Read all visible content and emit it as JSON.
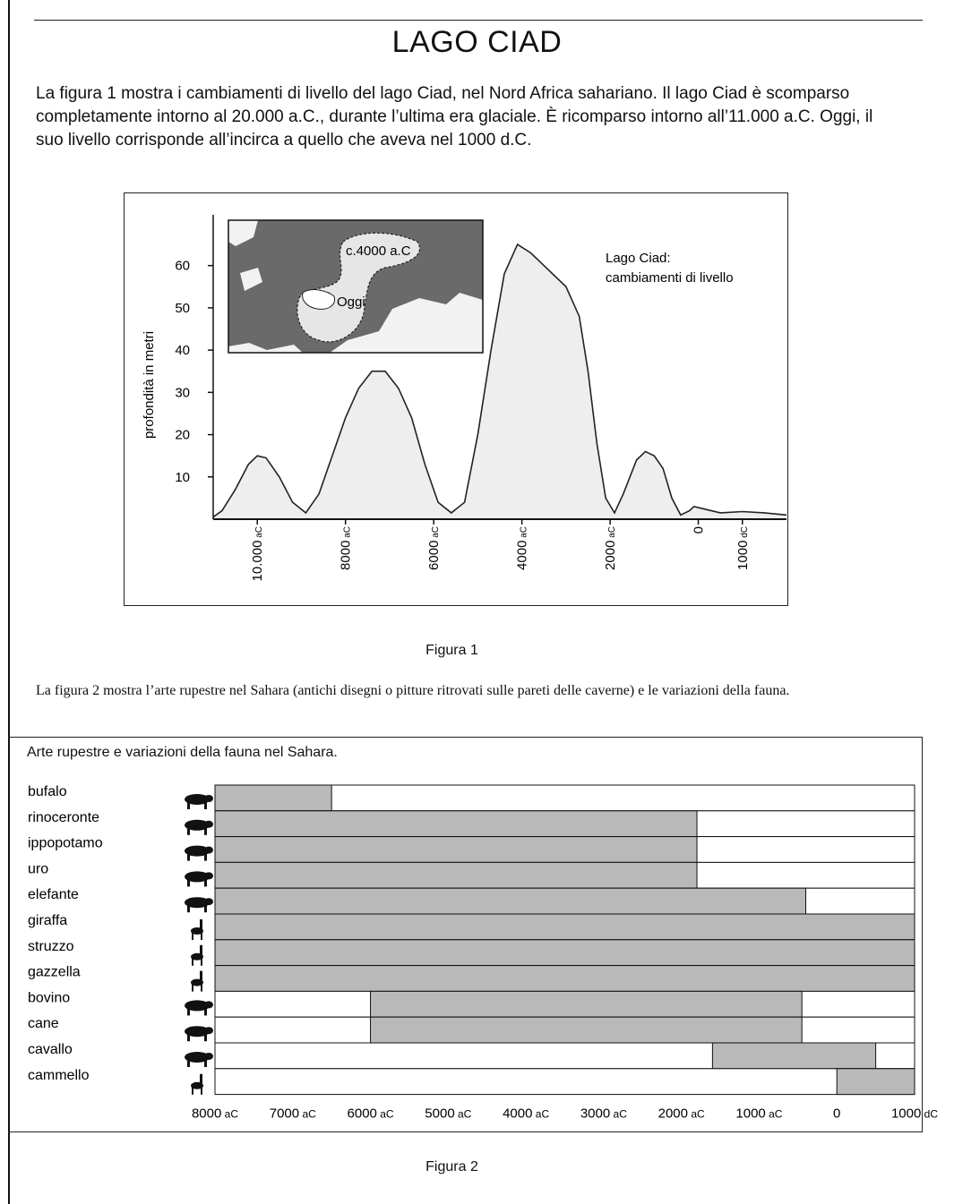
{
  "page": {
    "title": "LAGO CIAD",
    "intro": "La figura 1 mostra i cambiamenti di livello del lago Ciad, nel Nord Africa sahariano. Il lago Ciad è scomparso completamente intorno al 20.000 a.C., durante l’ultima era glaciale. È ricomparso intorno all’11.000 a.C. Oggi, il suo livello corrisponde all’incirca a quello che aveva nel 1000 d.C.",
    "figure1_caption": "Figura 1",
    "intro2": "La figura 2 mostra l’arte rupestre nel Sahara (antichi disegni o pitture ritrovati sulle pareti delle caverne) e le variazioni della fauna.",
    "figure2_caption": "Figura 2"
  },
  "chart_data": [
    {
      "type": "area",
      "title": "Lago Ciad: cambiamenti di livello",
      "ylabel": "profondità in metri",
      "ylim": [
        0,
        72
      ],
      "yticks": [
        10,
        20,
        30,
        40,
        50,
        60
      ],
      "xticks": [
        {
          "value": -10000,
          "label": "10.000 aC"
        },
        {
          "value": -8000,
          "label": "8000 aC"
        },
        {
          "value": -6000,
          "label": "6000 aC"
        },
        {
          "value": -4000,
          "label": "4000 aC"
        },
        {
          "value": -2000,
          "label": "2000 aC"
        },
        {
          "value": 0,
          "label": "0"
        },
        {
          "value": 1000,
          "label": "1000 dC"
        }
      ],
      "xlim": [
        -11000,
        2000
      ],
      "points": [
        [
          -11000,
          0.5
        ],
        [
          -10800,
          2
        ],
        [
          -10500,
          7
        ],
        [
          -10200,
          13
        ],
        [
          -10000,
          15
        ],
        [
          -9800,
          14.5
        ],
        [
          -9500,
          10
        ],
        [
          -9200,
          4
        ],
        [
          -8900,
          1.5
        ],
        [
          -8600,
          6
        ],
        [
          -8300,
          15
        ],
        [
          -8000,
          24
        ],
        [
          -7700,
          31
        ],
        [
          -7400,
          35
        ],
        [
          -7100,
          35
        ],
        [
          -6800,
          31
        ],
        [
          -6500,
          24
        ],
        [
          -6200,
          13
        ],
        [
          -5900,
          4
        ],
        [
          -5600,
          1.5
        ],
        [
          -5300,
          4
        ],
        [
          -5000,
          20
        ],
        [
          -4700,
          40
        ],
        [
          -4400,
          58
        ],
        [
          -4100,
          65
        ],
        [
          -3800,
          63
        ],
        [
          -3500,
          60
        ],
        [
          -3000,
          55
        ],
        [
          -2700,
          48
        ],
        [
          -2500,
          35
        ],
        [
          -2300,
          18
        ],
        [
          -2100,
          5
        ],
        [
          -1900,
          1.5
        ],
        [
          -1700,
          6
        ],
        [
          -1400,
          14
        ],
        [
          -1200,
          16
        ],
        [
          -1000,
          15
        ],
        [
          -800,
          12
        ],
        [
          -600,
          5
        ],
        [
          -400,
          1
        ],
        [
          -200,
          2
        ],
        [
          -100,
          3
        ],
        [
          100,
          2.5
        ],
        [
          500,
          1.5
        ],
        [
          1000,
          1.8
        ],
        [
          1500,
          1.5
        ],
        [
          2000,
          1
        ]
      ],
      "inset": {
        "labels": [
          "c.4000 a.C",
          "Oggi"
        ],
        "land_color": "#6a6a6a",
        "lake_color": "#e6e6e6",
        "ocean_color": "#f2f2f2"
      },
      "fill_color": "#eeeeee",
      "line_color": "#222222"
    },
    {
      "type": "bar",
      "title": "Arte rupestre e variazioni della fauna nel Sahara.",
      "orientation": "horizontal-ranges",
      "xlim": [
        -8000,
        1000
      ],
      "xticks": [
        {
          "value": -8000,
          "label": "8000 aC"
        },
        {
          "value": -7000,
          "label": "7000 aC"
        },
        {
          "value": -6000,
          "label": "6000 aC"
        },
        {
          "value": -5000,
          "label": "5000 aC"
        },
        {
          "value": -4000,
          "label": "4000 aC"
        },
        {
          "value": -3000,
          "label": "3000 aC"
        },
        {
          "value": -2000,
          "label": "2000 aC"
        },
        {
          "value": -1000,
          "label": "1000 aC"
        },
        {
          "value": 0,
          "label": "0"
        },
        {
          "value": 1000,
          "label": "1000 dC"
        }
      ],
      "series": [
        {
          "name": "bufalo",
          "icon": "buffalo-icon",
          "start": -8000,
          "end": -6500
        },
        {
          "name": "rinoceronte",
          "icon": "rhinoceros-icon",
          "start": -8000,
          "end": -1800
        },
        {
          "name": "ippopotamo",
          "icon": "hippopotamus-icon",
          "start": -8000,
          "end": -1800
        },
        {
          "name": "uro",
          "icon": "aurochs-icon",
          "start": -8000,
          "end": -1800
        },
        {
          "name": "elefante",
          "icon": "elephant-icon",
          "start": -8000,
          "end": -400
        },
        {
          "name": "giraffa",
          "icon": "giraffe-icon",
          "start": -8000,
          "end": 1000
        },
        {
          "name": "struzzo",
          "icon": "ostrich-icon",
          "start": -8000,
          "end": 1000
        },
        {
          "name": "gazzella",
          "icon": "gazelle-icon",
          "start": -8000,
          "end": 1000
        },
        {
          "name": "bovino",
          "icon": "cattle-icon",
          "start": -6000,
          "end": -450
        },
        {
          "name": "cane",
          "icon": "dog-icon",
          "start": -6000,
          "end": -450
        },
        {
          "name": "cavallo",
          "icon": "horse-icon",
          "start": -1600,
          "end": 500
        },
        {
          "name": "cammello",
          "icon": "camel-icon",
          "start": 0,
          "end": 1000
        }
      ],
      "bar_color": "#b9b9b9"
    }
  ]
}
